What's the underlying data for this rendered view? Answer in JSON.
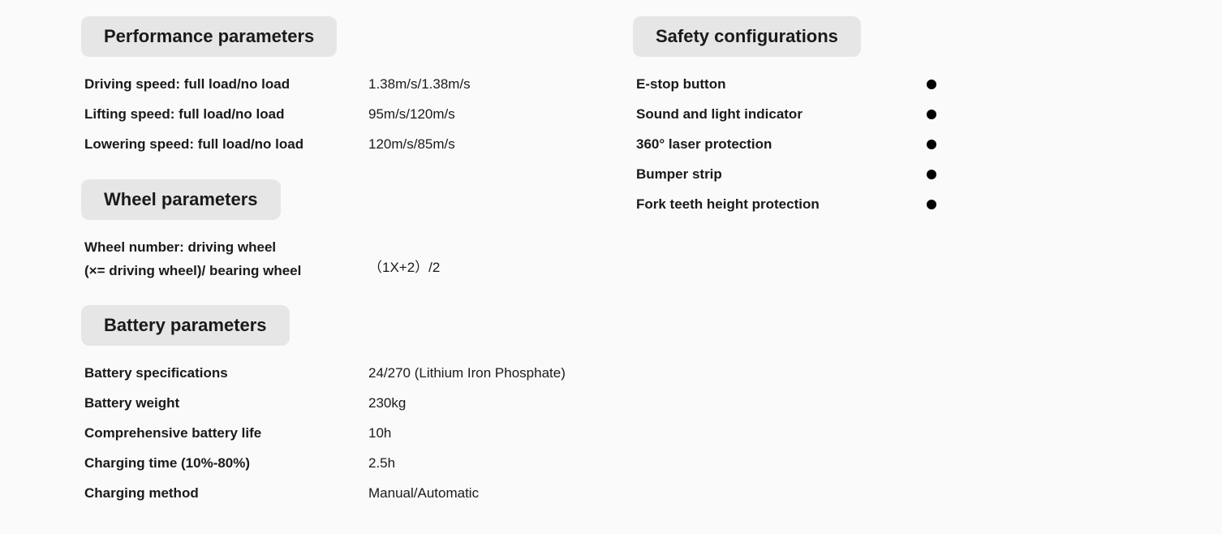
{
  "colors": {
    "page_bg": "#fafafa",
    "header_bg": "#e6e6e6",
    "text": "#1a1a1a",
    "bullet": "#000000"
  },
  "left": {
    "performance": {
      "title": "Performance parameters",
      "rows": [
        {
          "label": "Driving speed: full load/no load",
          "value": "1.38m/s/1.38m/s"
        },
        {
          "label": "Lifting speed: full load/no load",
          "value": "95m/s/120m/s"
        },
        {
          "label": "Lowering speed: full load/no load",
          "value": "120m/s/85m/s"
        }
      ]
    },
    "wheel": {
      "title": "Wheel parameters",
      "row": {
        "label_line1": "Wheel number: driving wheel",
        "label_line2": "(×= driving wheel)/ bearing wheel",
        "value": "（1X+2）/2"
      }
    },
    "battery": {
      "title": "Battery parameters",
      "rows": [
        {
          "label": "Battery specifications",
          "value": "24/270 (Lithium Iron Phosphate)"
        },
        {
          "label": "Battery weight",
          "value": "230kg"
        },
        {
          "label": "Comprehensive battery life",
          "value": "10h"
        },
        {
          "label": "Charging time (10%-80%)",
          "value": "2.5h"
        },
        {
          "label": "Charging method",
          "value": "Manual/Automatic"
        }
      ]
    }
  },
  "right": {
    "safety": {
      "title": "Safety configurations",
      "items": [
        "E-stop button",
        "Sound and light indicator",
        "360° laser protection",
        "Bumper strip",
        "Fork teeth height protection"
      ]
    }
  }
}
